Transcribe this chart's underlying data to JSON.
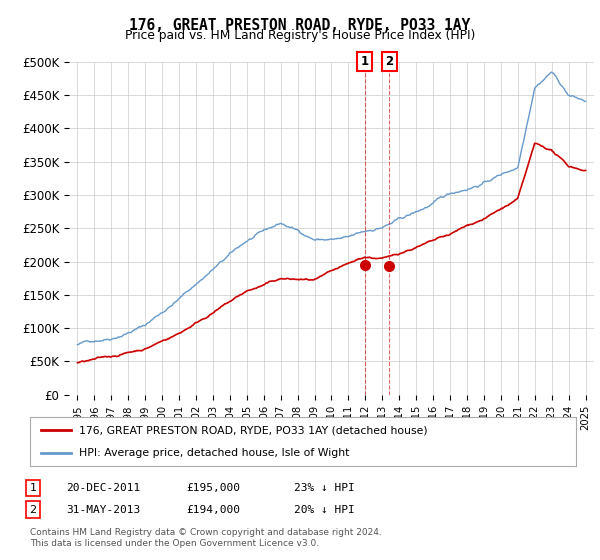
{
  "title": "176, GREAT PRESTON ROAD, RYDE, PO33 1AY",
  "subtitle": "Price paid vs. HM Land Registry's House Price Index (HPI)",
  "ylim": [
    0,
    500000
  ],
  "yticks": [
    0,
    50000,
    100000,
    150000,
    200000,
    250000,
    300000,
    350000,
    400000,
    450000,
    500000
  ],
  "ytick_labels": [
    "£0",
    "£50K",
    "£100K",
    "£150K",
    "£200K",
    "£250K",
    "£300K",
    "£350K",
    "£400K",
    "£450K",
    "£500K"
  ],
  "hpi_color": "#6699cc",
  "price_color": "#cc0000",
  "marker_color": "#cc0000",
  "sale1_x": 2011.96,
  "sale1_y": 195000,
  "sale2_x": 2013.41,
  "sale2_y": 194000,
  "legend_label_red": "176, GREAT PRESTON ROAD, RYDE, PO33 1AY (detached house)",
  "legend_label_blue": "HPI: Average price, detached house, Isle of Wight",
  "table_row1": [
    "1",
    "20-DEC-2011",
    "£195,000",
    "23% ↓ HPI"
  ],
  "table_row2": [
    "2",
    "31-MAY-2013",
    "£194,000",
    "20% ↓ HPI"
  ],
  "footer": "Contains HM Land Registry data © Crown copyright and database right 2024.\nThis data is licensed under the Open Government Licence v3.0.",
  "hpi_anchors_x": [
    1995,
    1997,
    1999,
    2001,
    2003,
    2005,
    2007,
    2009,
    2011,
    2013,
    2015,
    2017,
    2019,
    2021,
    2022,
    2023,
    2024,
    2025
  ],
  "hpi_anchors_y": [
    75000,
    88000,
    110000,
    150000,
    195000,
    235000,
    258000,
    235000,
    235000,
    250000,
    270000,
    295000,
    315000,
    340000,
    465000,
    490000,
    455000,
    445000
  ],
  "price_anchors_x": [
    1995,
    1997,
    1999,
    2001,
    2003,
    2005,
    2007,
    2009,
    2011,
    2011.96,
    2013,
    2013.41,
    2015,
    2017,
    2019,
    2021,
    2022,
    2023,
    2024,
    2025
  ],
  "price_anchors_y": [
    48000,
    55000,
    68000,
    92000,
    125000,
    155000,
    172000,
    168000,
    185000,
    195000,
    193000,
    194000,
    210000,
    225000,
    248000,
    275000,
    355000,
    345000,
    320000,
    315000
  ],
  "background_color": "#ffffff",
  "grid_color": "#cccccc",
  "xmin": 1994.5,
  "xmax": 2025.5
}
